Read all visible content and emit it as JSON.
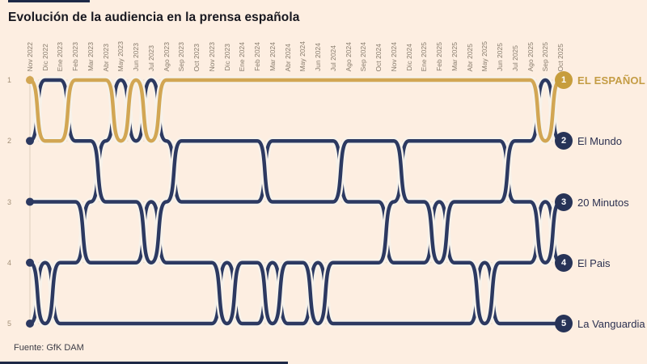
{
  "title": "Evolución de la audiencia en la prensa española",
  "source": "Fuente: GfK DAM",
  "colors": {
    "background": "#fdeee1",
    "gold": "#d2a653",
    "navy": "#2c3961",
    "gold_badge": "#c79d3c",
    "navy_badge": "#273357",
    "halo": "#f7f2ea",
    "grid": "#e7d8c6",
    "axis": "#ddcfbd",
    "month_label": "#877b6c",
    "rank_label": "#a28f76",
    "title_text": "#17171f",
    "source_text": "#3c3c46",
    "accent_bar": "#1d2947"
  },
  "rank_axis": [
    "1",
    "2",
    "3",
    "4",
    "5"
  ],
  "chart_data": {
    "type": "line",
    "subtype": "bump-rank",
    "title": "Evolución de la audiencia en la prensa española",
    "xlabel": "",
    "ylabel": "",
    "ylim": [
      1,
      5
    ],
    "y_inverted": true,
    "grid": "horizontal-dotted",
    "legend_position": "right",
    "x": [
      "Nov 2022",
      "Dic 2022",
      "Ene 2023",
      "Feb 2023",
      "Mar 2023",
      "Abr 2023",
      "May 2023",
      "Jun 2023",
      "Jul 2023",
      "Ago 2023",
      "Sep 2023",
      "Oct 2023",
      "Nov 2023",
      "Dic 2023",
      "Ene 2024",
      "Feb 2024",
      "Mar 2024",
      "Abr 2024",
      "May 2024",
      "Jun 2024",
      "Jul 2024",
      "Ago 2024",
      "Sep 2024",
      "Oct 2024",
      "Nov 2024",
      "Dic 2024",
      "Ene 2025",
      "Feb 2025",
      "Mar 2025",
      "Abr 2025",
      "May 2025",
      "Jun 2025",
      "Jul 2025",
      "Ago 2025",
      "Sep 2025",
      "Oct 2025"
    ],
    "series": [
      {
        "name": "La Vanguardia",
        "badge": "5",
        "final_rank": 5,
        "color": "#2c3961",
        "badge_color": "#273357",
        "label_color": "#2b3050",
        "ranks": [
          5,
          4,
          5,
          5,
          5,
          5,
          5,
          5,
          5,
          5,
          5,
          5,
          5,
          4,
          5,
          5,
          4,
          5,
          5,
          4,
          5,
          5,
          5,
          5,
          5,
          5,
          5,
          5,
          5,
          5,
          4,
          5,
          5,
          5,
          5,
          5
        ]
      },
      {
        "name": "El Pais",
        "badge": "4",
        "final_rank": 4,
        "color": "#2c3961",
        "badge_color": "#273357",
        "label_color": "#2b3050",
        "ranks": [
          4,
          5,
          4,
          4,
          3,
          2,
          1,
          2,
          1,
          2,
          3,
          3,
          3,
          3,
          3,
          3,
          2,
          2,
          2,
          2,
          2,
          3,
          3,
          3,
          4,
          4,
          4,
          3,
          4,
          4,
          5,
          4,
          4,
          4,
          3,
          4
        ]
      },
      {
        "name": "20 Minutos",
        "badge": "3",
        "final_rank": 3,
        "color": "#2c3961",
        "badge_color": "#273357",
        "label_color": "#2b3050",
        "ranks": [
          3,
          3,
          3,
          3,
          4,
          4,
          4,
          4,
          3,
          4,
          4,
          4,
          4,
          5,
          4,
          4,
          5,
          4,
          4,
          5,
          4,
          4,
          4,
          4,
          3,
          2,
          2,
          2,
          2,
          2,
          2,
          2,
          3,
          3,
          4,
          3
        ]
      },
      {
        "name": "El Mundo",
        "badge": "2",
        "final_rank": 2,
        "color": "#2c3961",
        "badge_color": "#273357",
        "label_color": "#2b3050",
        "ranks": [
          2,
          1,
          1,
          2,
          2,
          3,
          3,
          3,
          4,
          3,
          2,
          2,
          2,
          2,
          2,
          2,
          3,
          3,
          3,
          3,
          3,
          2,
          2,
          2,
          2,
          3,
          3,
          4,
          3,
          3,
          3,
          3,
          2,
          2,
          1,
          2
        ]
      },
      {
        "name": "EL ESPAÑOL",
        "badge": "1",
        "final_rank": 1,
        "color": "#d2a653",
        "badge_color": "#c79d3c",
        "label_color": "#c49c44",
        "featured": true,
        "ranks": [
          1,
          2,
          2,
          1,
          1,
          1,
          2,
          1,
          2,
          1,
          1,
          1,
          1,
          1,
          1,
          1,
          1,
          1,
          1,
          1,
          1,
          1,
          1,
          1,
          1,
          1,
          1,
          1,
          1,
          1,
          1,
          1,
          1,
          1,
          2,
          1
        ]
      }
    ]
  }
}
